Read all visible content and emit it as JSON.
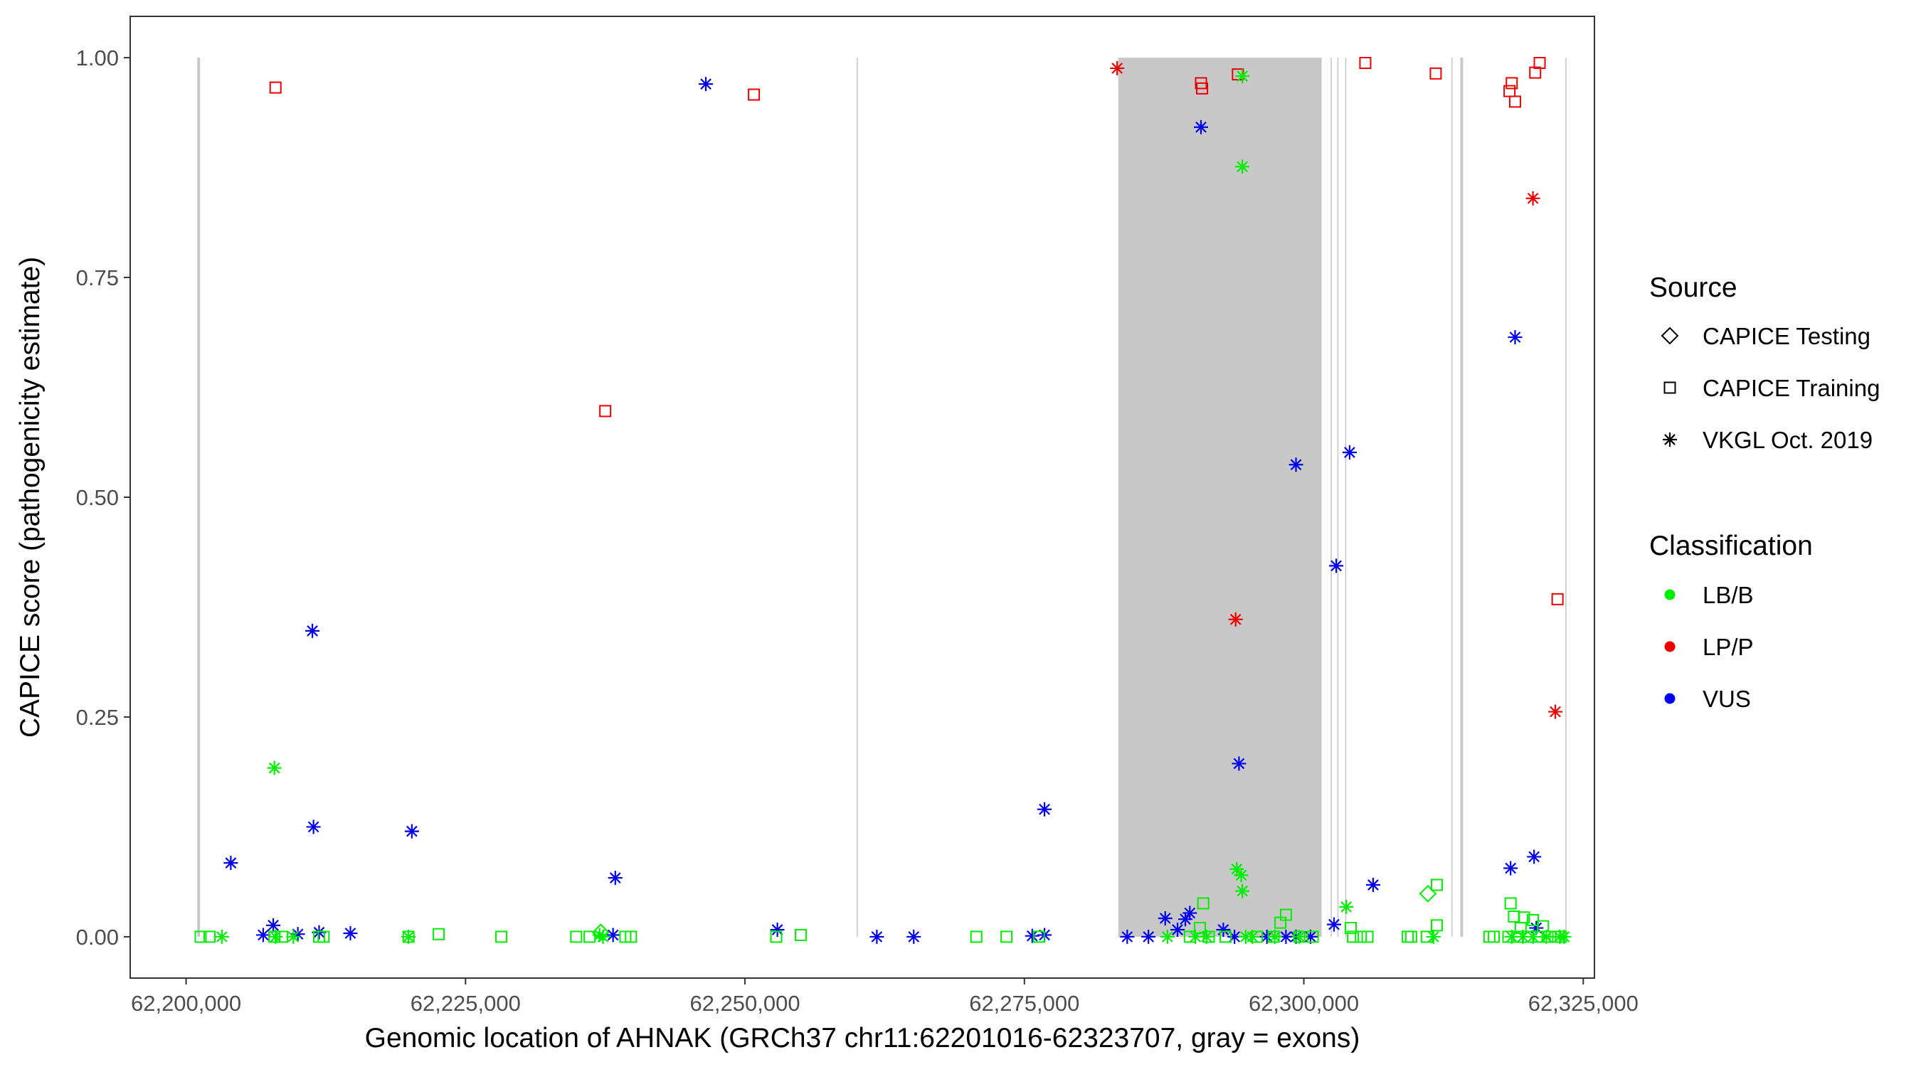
{
  "chart_data": {
    "type": "scatter",
    "xlabel": "Genomic location of AHNAK (GRCh37 chr11:62201016-62323707, gray = exons)",
    "ylabel": "CAPICE score (pathogenicity estimate)",
    "xlim": [
      62195000,
      62326000
    ],
    "ylim": [
      -0.047,
      1.047
    ],
    "x_ticks": [
      62200000,
      62225000,
      62250000,
      62275000,
      62300000,
      62325000
    ],
    "x_tick_labels": [
      "62,200,000",
      "62,225,000",
      "62,250,000",
      "62,275,000",
      "62,300,000",
      "62,325,000"
    ],
    "y_ticks": [
      0,
      0.25,
      0.5,
      0.75,
      1
    ],
    "y_tick_labels": [
      "0.00",
      "0.25",
      "0.50",
      "0.75",
      "1.00"
    ],
    "exons": [
      {
        "start": 62201000,
        "end": 62201250
      },
      {
        "start": 62260000,
        "end": 62260100
      },
      {
        "start": 62283400,
        "end": 62301600
      },
      {
        "start": 62302400,
        "end": 62302500
      },
      {
        "start": 62303000,
        "end": 62303100
      },
      {
        "start": 62303700,
        "end": 62303800
      },
      {
        "start": 62313200,
        "end": 62313300
      },
      {
        "start": 62314000,
        "end": 62314250
      },
      {
        "start": 62323400,
        "end": 62323500
      }
    ],
    "colors": {
      "LB/B": "#00ee00",
      "LP/P": "#ee0000",
      "VUS": "#0000ee",
      "exon": "#c8c8c8"
    },
    "legend": {
      "source_title": "Source",
      "source_items": [
        {
          "label": "CAPICE Testing",
          "shape": "diamond"
        },
        {
          "label": "CAPICE Training",
          "shape": "square"
        },
        {
          "label": "VKGL Oct. 2019",
          "shape": "asterisk"
        }
      ],
      "class_title": "Classification",
      "class_items": [
        {
          "label": "LB/B",
          "color": "#00ee00"
        },
        {
          "label": "LP/P",
          "color": "#ee0000"
        },
        {
          "label": "VUS",
          "color": "#0000ee"
        }
      ]
    },
    "series": [
      {
        "source": "CAPICE Training",
        "classification": "LP/P",
        "points": [
          [
            62208000,
            0.966
          ],
          [
            62250800,
            0.958
          ],
          [
            62237500,
            0.598
          ],
          [
            62290800,
            0.971
          ],
          [
            62290900,
            0.965
          ],
          [
            62294100,
            0.981
          ],
          [
            62305500,
            0.994
          ],
          [
            62311800,
            0.982
          ],
          [
            62318400,
            0.962
          ],
          [
            62318600,
            0.971
          ],
          [
            62318900,
            0.95
          ],
          [
            62320700,
            0.983
          ],
          [
            62321100,
            0.994
          ],
          [
            62322700,
            0.384
          ]
        ]
      },
      {
        "source": "VKGL Oct. 2019",
        "classification": "LP/P",
        "points": [
          [
            62283300,
            0.988
          ],
          [
            62293900,
            0.361
          ],
          [
            62320500,
            0.84
          ],
          [
            62322500,
            0.256
          ]
        ]
      },
      {
        "source": "VKGL Oct. 2019",
        "classification": "VUS",
        "points": [
          [
            62246500,
            0.97
          ],
          [
            62290800,
            0.921
          ],
          [
            62318900,
            0.682
          ],
          [
            62299300,
            0.537
          ],
          [
            62304100,
            0.551
          ],
          [
            62302900,
            0.422
          ],
          [
            62211300,
            0.348
          ],
          [
            62294200,
            0.197
          ],
          [
            62276800,
            0.145
          ],
          [
            62211400,
            0.125
          ],
          [
            62220200,
            0.12
          ],
          [
            62204000,
            0.084
          ],
          [
            62238400,
            0.067
          ],
          [
            62320600,
            0.091
          ],
          [
            62318500,
            0.078
          ],
          [
            62306200,
            0.059
          ],
          [
            62207800,
            0.013
          ],
          [
            62252900,
            0.008
          ],
          [
            62211900,
            0.005
          ],
          [
            62210000,
            0.003
          ],
          [
            62214700,
            0.004
          ],
          [
            62206900,
            0.002
          ],
          [
            62238200,
            0.002
          ],
          [
            62261800,
            0.0
          ],
          [
            62265100,
            0.0
          ],
          [
            62275700,
            0.001
          ],
          [
            62276800,
            0.002
          ],
          [
            62284200,
            0.0
          ],
          [
            62286100,
            0.0
          ],
          [
            62287600,
            0.021
          ],
          [
            62289800,
            0.027
          ],
          [
            62289400,
            0.02
          ],
          [
            62288700,
            0.008
          ],
          [
            62292800,
            0.008
          ],
          [
            62293800,
            0.0
          ],
          [
            62296700,
            0.0
          ],
          [
            62298400,
            0.0
          ],
          [
            62299300,
            0.0
          ],
          [
            62300600,
            0.0
          ],
          [
            62302700,
            0.014
          ],
          [
            62320800,
            0.01
          ]
        ]
      },
      {
        "source": "VKGL Oct. 2019",
        "classification": "LB/B",
        "points": [
          [
            62294500,
            0.979
          ],
          [
            62294500,
            0.876
          ],
          [
            62207900,
            0.192
          ],
          [
            62294000,
            0.077
          ],
          [
            62294400,
            0.07
          ],
          [
            62294500,
            0.052
          ],
          [
            62303800,
            0.034
          ],
          [
            62203200,
            0.0
          ],
          [
            62208000,
            0.0
          ],
          [
            62209600,
            0.0
          ],
          [
            62219900,
            0.0
          ],
          [
            62237000,
            0.002
          ],
          [
            62237300,
            0.0
          ],
          [
            62287800,
            0.0
          ],
          [
            62290300,
            0.0
          ],
          [
            62291300,
            0.0
          ],
          [
            62294800,
            0.0
          ],
          [
            62295400,
            0.0
          ],
          [
            62297400,
            0.0
          ],
          [
            62299600,
            0.0
          ],
          [
            62311600,
            0.0
          ],
          [
            62318600,
            0.0
          ],
          [
            62319600,
            0.0
          ],
          [
            62320500,
            0.0
          ],
          [
            62321700,
            0.0
          ],
          [
            62322900,
            0.0
          ],
          [
            62323300,
            0.0
          ]
        ]
      },
      {
        "source": "CAPICE Training",
        "classification": "LB/B",
        "points": [
          [
            62201300,
            0.0
          ],
          [
            62202100,
            0.0
          ],
          [
            62207900,
            0.0
          ],
          [
            62208600,
            0.0
          ],
          [
            62211900,
            0.0
          ],
          [
            62212300,
            0.0
          ],
          [
            62219900,
            0.0
          ],
          [
            62222600,
            0.003
          ],
          [
            62228200,
            0.0
          ],
          [
            62234900,
            0.0
          ],
          [
            62236100,
            0.0
          ],
          [
            62239300,
            0.0
          ],
          [
            62239800,
            0.0
          ],
          [
            62252800,
            0.0
          ],
          [
            62255000,
            0.002
          ],
          [
            62270700,
            0.0
          ],
          [
            62273400,
            0.0
          ],
          [
            62276300,
            0.0
          ],
          [
            62289800,
            0.0
          ],
          [
            62290700,
            0.01
          ],
          [
            62291000,
            0.038
          ],
          [
            62291500,
            0.0
          ],
          [
            62293000,
            0.0
          ],
          [
            62295800,
            0.0
          ],
          [
            62297300,
            0.0
          ],
          [
            62297900,
            0.016
          ],
          [
            62298400,
            0.025
          ],
          [
            62299600,
            0.0
          ],
          [
            62300800,
            0.0
          ],
          [
            62304200,
            0.01
          ],
          [
            62304400,
            0.0
          ],
          [
            62305100,
            0.0
          ],
          [
            62305700,
            0.0
          ],
          [
            62309300,
            0.0
          ],
          [
            62309600,
            0.0
          ],
          [
            62311000,
            0.0
          ],
          [
            62311900,
            0.013
          ],
          [
            62311900,
            0.059
          ],
          [
            62316600,
            0.0
          ],
          [
            62317000,
            0.0
          ],
          [
            62318300,
            0.0
          ],
          [
            62318500,
            0.038
          ],
          [
            62318800,
            0.023
          ],
          [
            62319100,
            0.0
          ],
          [
            62319400,
            0.01
          ],
          [
            62319700,
            0.022
          ],
          [
            62320100,
            0.0
          ],
          [
            62320500,
            0.019
          ],
          [
            62321000,
            0.0
          ],
          [
            62321400,
            0.012
          ],
          [
            62321800,
            0.0
          ],
          [
            62322500,
            0.0
          ],
          [
            62323000,
            0.0
          ]
        ]
      },
      {
        "source": "CAPICE Testing",
        "classification": "LB/B",
        "points": [
          [
            62237100,
            0.005
          ],
          [
            62311100,
            0.049
          ]
        ]
      }
    ]
  }
}
